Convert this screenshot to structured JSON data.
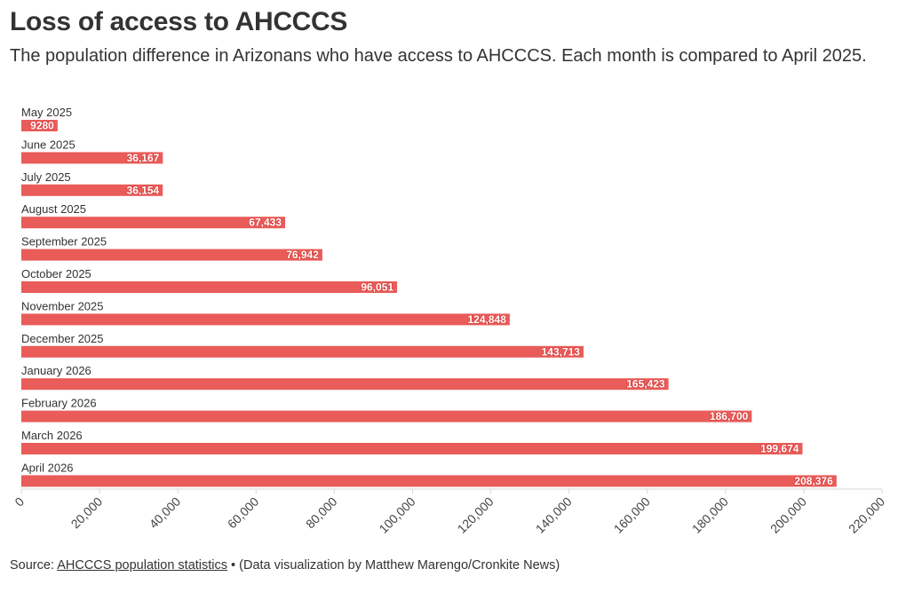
{
  "header": {
    "title": "Loss of access to AHCCCS",
    "subtitle": "The population difference in Arizonans who have access to AHCCCS. Each month is compared to April 2025."
  },
  "footer": {
    "source_prefix": "Source: ",
    "source_link": "AHCCCS population statistics",
    "credit": " • (Data visualization by Matthew Marengo/Cronkite News)"
  },
  "chart_data": {
    "type": "bar",
    "orientation": "horizontal",
    "categories": [
      "May 2025",
      "June 2025",
      "July 2025",
      "August 2025",
      "September 2025",
      "October 2025",
      "November 2025",
      "December 2025",
      "January 2026",
      "February 2026",
      "March 2026",
      "April 2026"
    ],
    "values": [
      9280,
      36167,
      36154,
      67433,
      76942,
      96051,
      124848,
      143713,
      165423,
      186700,
      199674,
      208376
    ],
    "value_labels": [
      "9280",
      "36,167",
      "36,154",
      "67,433",
      "76,942",
      "96,051",
      "124,848",
      "143,713",
      "165,423",
      "186,700",
      "199,674",
      "208,376"
    ],
    "xlim": [
      0,
      220000
    ],
    "x_ticks": [
      0,
      20000,
      40000,
      60000,
      80000,
      100000,
      120000,
      140000,
      160000,
      180000,
      200000,
      220000
    ],
    "x_tick_labels": [
      "0",
      "20,000",
      "40,000",
      "60,000",
      "80,000",
      "100,000",
      "120,000",
      "140,000",
      "160,000",
      "180,000",
      "200,000",
      "220,000"
    ],
    "bar_color": "#e95c59",
    "grid": false,
    "legend": "none"
  }
}
